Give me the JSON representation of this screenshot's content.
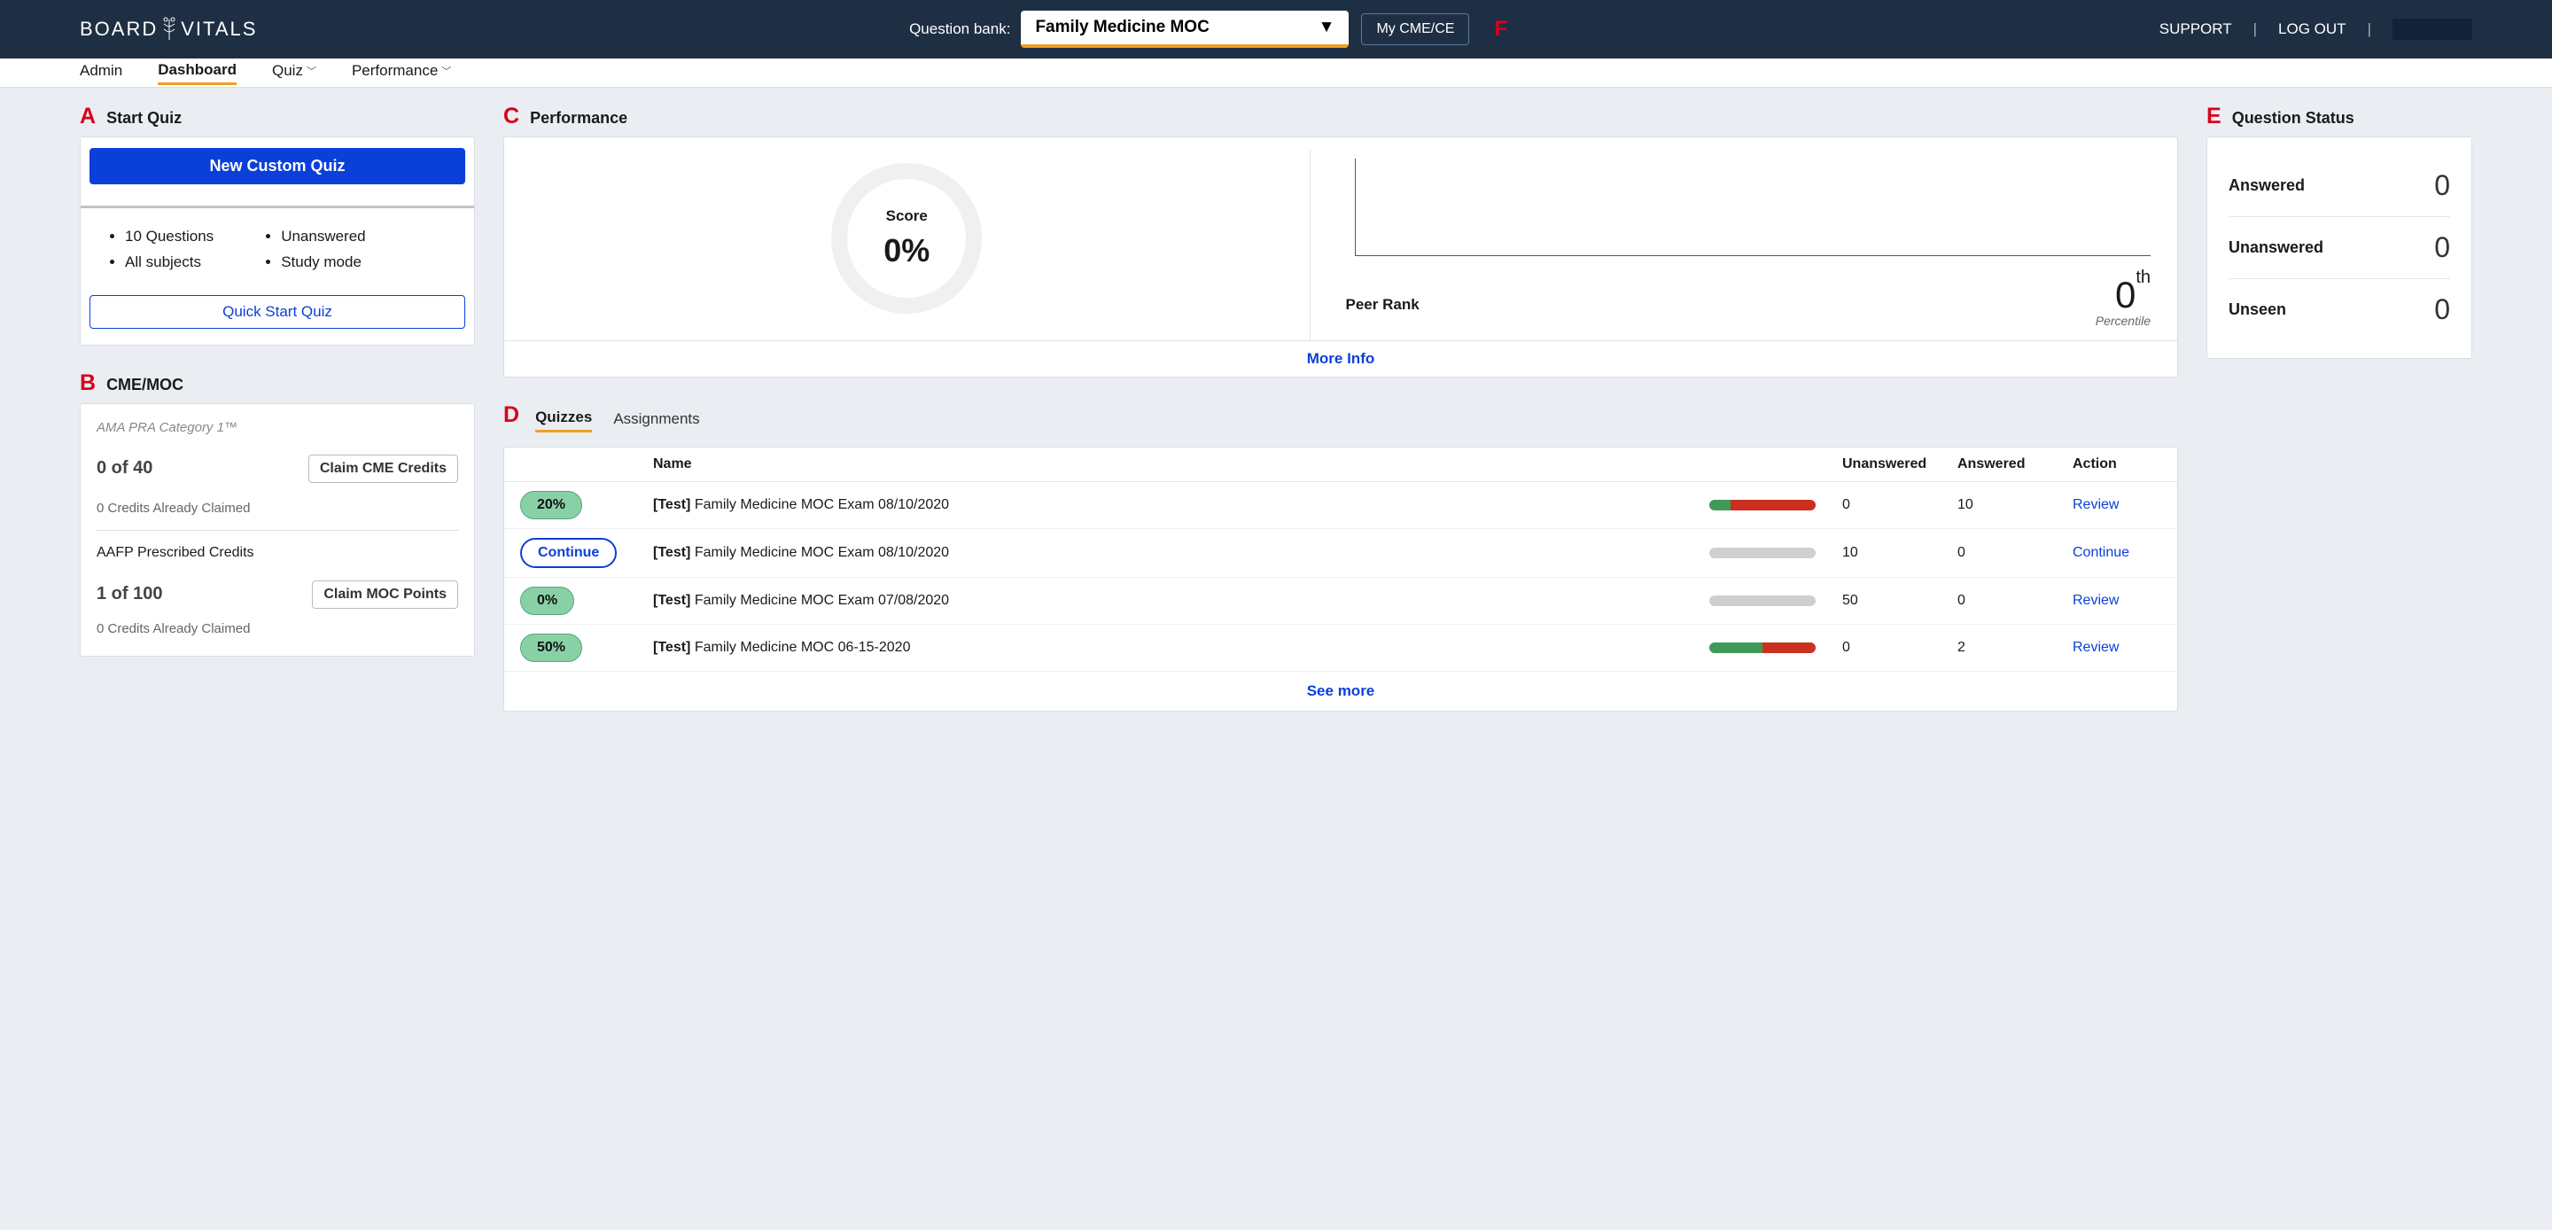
{
  "topbar": {
    "logo_left": "BOARD",
    "logo_right": "VITALS",
    "bank_label": "Question bank:",
    "bank_value": "Family Medicine MOC",
    "cme_button": "My CME/CE",
    "support": "SUPPORT",
    "logout": "LOG OUT"
  },
  "annotations": {
    "A": "A",
    "B": "B",
    "C": "C",
    "D": "D",
    "E": "E",
    "F": "F"
  },
  "nav": {
    "admin": "Admin",
    "dashboard": "Dashboard",
    "quiz": "Quiz",
    "performance": "Performance"
  },
  "start_quiz": {
    "title": "Start Quiz",
    "new_custom": "New Custom Quiz",
    "opts_left": [
      "10 Questions",
      "All subjects"
    ],
    "opts_right": [
      "Unanswered",
      "Study mode"
    ],
    "quick_start": "Quick Start Quiz"
  },
  "cme": {
    "title": "CME/MOC",
    "cat": "AMA PRA Category 1™",
    "val1": "0 of 40",
    "btn1": "Claim CME Credits",
    "claimed1": "0 Credits Already Claimed",
    "label2": "AAFP Prescribed Credits",
    "val2": "1 of 100",
    "btn2": "Claim MOC Points",
    "claimed2": "0 Credits Already Claimed"
  },
  "perf": {
    "title": "Performance",
    "score_label": "Score",
    "score_value": "0%",
    "rank_label": "Peer Rank",
    "rank_value": "0",
    "rank_suffix": "th",
    "rank_percentile": "Percentile",
    "more_info": "More Info"
  },
  "status": {
    "title": "Question Status",
    "rows": [
      {
        "label": "Answered",
        "value": "0"
      },
      {
        "label": "Unanswered",
        "value": "0"
      },
      {
        "label": "Unseen",
        "value": "0"
      }
    ]
  },
  "quizzes": {
    "tab_quizzes": "Quizzes",
    "tab_assignments": "Assignments",
    "head": {
      "name": "Name",
      "un": "Unanswered",
      "an": "Answered",
      "action": "Action"
    },
    "rows": [
      {
        "pill": "20%",
        "pill_type": "green",
        "name_prefix": "[Test]",
        "name": "Family Medicine MOC Exam 08/10/2020",
        "bar_green": 20,
        "bar_red": 80,
        "bar_grey": 0,
        "un": "0",
        "an": "10",
        "action": "Review"
      },
      {
        "pill": "Continue",
        "pill_type": "outline",
        "name_prefix": "[Test]",
        "name": "Family Medicine MOC Exam 08/10/2020",
        "bar_green": 0,
        "bar_red": 0,
        "bar_grey": 100,
        "un": "10",
        "an": "0",
        "action": "Continue"
      },
      {
        "pill": "0%",
        "pill_type": "green",
        "name_prefix": "[Test]",
        "name": "Family Medicine MOC Exam 07/08/2020",
        "bar_green": 0,
        "bar_red": 0,
        "bar_grey": 100,
        "un": "50",
        "an": "0",
        "action": "Review"
      },
      {
        "pill": "50%",
        "pill_type": "green",
        "name_prefix": "[Test]",
        "name": "Family Medicine MOC 06-15-2020",
        "bar_green": 50,
        "bar_red": 50,
        "bar_grey": 0,
        "un": "0",
        "an": "2",
        "action": "Review"
      }
    ],
    "see_more": "See more"
  },
  "colors": {
    "header_bg": "#1e2f44",
    "accent_orange": "#f0a020",
    "primary_blue": "#0b3fd9",
    "pill_green": "#88d1a6",
    "bar_green": "#3f9a5a",
    "bar_red": "#c93020",
    "bar_grey": "#cfcfcf",
    "page_bg": "#eaeef2"
  }
}
